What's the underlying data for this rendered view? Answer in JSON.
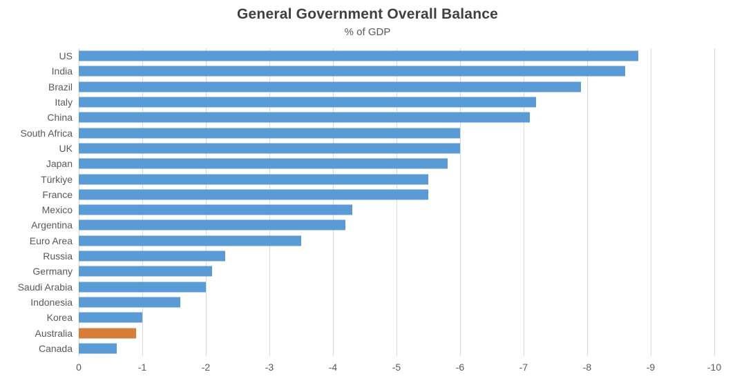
{
  "chart": {
    "title": "General Government Overall Balance",
    "subtitle": "% of GDP"
  },
  "chart_data": {
    "type": "bar",
    "orientation": "horizontal",
    "title": "General Government Overall Balance",
    "subtitle": "% of GDP",
    "categories": [
      "US",
      "India",
      "Brazil",
      "Italy",
      "China",
      "South Africa",
      "UK",
      "Japan",
      "Türkiye",
      "France",
      "Mexico",
      "Argentina",
      "Euro Area",
      "Russia",
      "Germany",
      "Saudi Arabia",
      "Indonesia",
      "Korea",
      "Australia",
      "Canada"
    ],
    "values": [
      -8.8,
      -8.6,
      -7.9,
      -7.2,
      -7.1,
      -6.0,
      -6.0,
      -5.8,
      -5.5,
      -5.5,
      -4.3,
      -4.2,
      -3.5,
      -2.3,
      -2.1,
      -2.0,
      -1.6,
      -1.0,
      -0.9,
      -0.6
    ],
    "xlabel": "",
    "ylabel": "",
    "xlim": [
      0,
      -10
    ],
    "x_axis_ticks": [
      0,
      -1,
      -2,
      -3,
      -4,
      -5,
      -6,
      -7,
      -8,
      -9,
      -10
    ],
    "x_tick_labels": [
      "0",
      "-1",
      "-2",
      "-3",
      "-4",
      "-5",
      "-6",
      "-7",
      "-8",
      "-9",
      "-10"
    ],
    "grid": true,
    "legend": false,
    "bar_color": "#5B9BD5",
    "highlight_color": "#D67D3A",
    "highlighted_category": "Australia",
    "gridline_color": "#D9D9D9",
    "label_color": "#595959",
    "title_color": "#404040"
  }
}
